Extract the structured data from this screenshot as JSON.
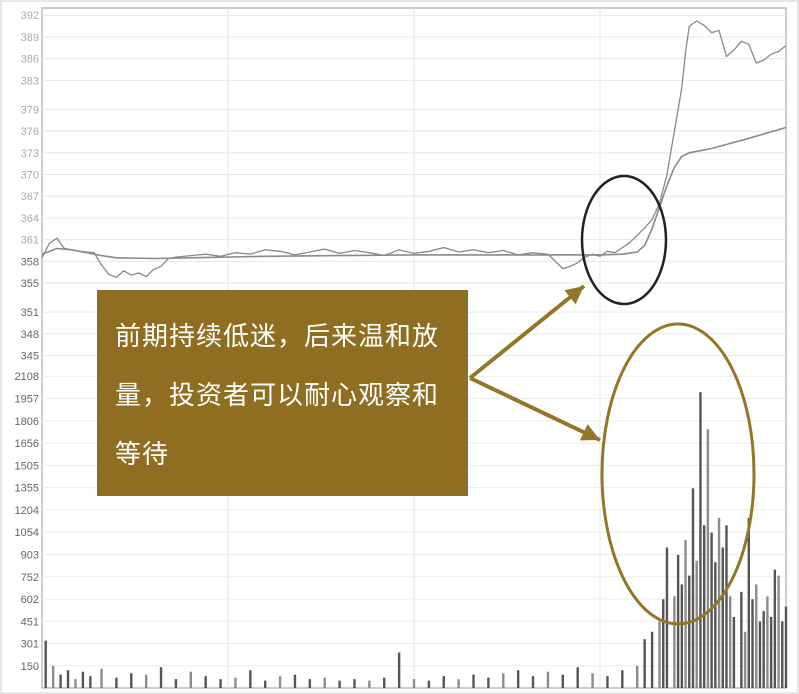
{
  "callout_text": "前期持续低迷，后来温和放量，投资者可以耐心观察和等待",
  "colors": {
    "price": "#8a8a8a",
    "avg": "#8a8a8a",
    "volume": "#555555",
    "annotation": "#947629",
    "circle": "#222222",
    "box": "#8f6e22"
  },
  "chart_data": {
    "type": "line",
    "panels": [
      {
        "name": "price",
        "ylim": [
          343,
          393
        ],
        "y_ticks": [
          {
            "value": 392,
            "label": "392"
          },
          {
            "value": 389,
            "label": "389"
          },
          {
            "value": 386,
            "label": "386"
          },
          {
            "value": 383,
            "label": "383"
          },
          {
            "value": 379,
            "label": "379"
          },
          {
            "value": 376,
            "label": "376"
          },
          {
            "value": 373,
            "label": "373"
          },
          {
            "value": 370,
            "label": "370"
          },
          {
            "value": 367,
            "label": "367"
          },
          {
            "value": 364,
            "label": "364"
          },
          {
            "value": 361,
            "label": "361"
          },
          {
            "value": 358,
            "label": "358"
          },
          {
            "value": 355,
            "label": "355"
          },
          {
            "value": 351,
            "label": "351"
          },
          {
            "value": 348,
            "label": "348"
          },
          {
            "value": 345,
            "label": "345"
          }
        ],
        "price_series": [
          [
            0,
            358.5
          ],
          [
            0.01,
            360.5
          ],
          [
            0.02,
            361.2
          ],
          [
            0.03,
            359.8
          ],
          [
            0.05,
            359.4
          ],
          [
            0.07,
            359.2
          ],
          [
            0.08,
            357.5
          ],
          [
            0.09,
            356.2
          ],
          [
            0.1,
            355.8
          ],
          [
            0.11,
            356.7
          ],
          [
            0.12,
            356.1
          ],
          [
            0.13,
            356.4
          ],
          [
            0.14,
            355.9
          ],
          [
            0.15,
            356.9
          ],
          [
            0.16,
            357.3
          ],
          [
            0.17,
            358.4
          ],
          [
            0.18,
            358.6
          ],
          [
            0.2,
            358.8
          ],
          [
            0.22,
            359.0
          ],
          [
            0.24,
            358.7
          ],
          [
            0.26,
            359.2
          ],
          [
            0.28,
            359.0
          ],
          [
            0.3,
            359.6
          ],
          [
            0.32,
            359.4
          ],
          [
            0.34,
            358.9
          ],
          [
            0.36,
            359.3
          ],
          [
            0.38,
            359.7
          ],
          [
            0.4,
            359.1
          ],
          [
            0.42,
            359.5
          ],
          [
            0.44,
            359.2
          ],
          [
            0.46,
            358.8
          ],
          [
            0.48,
            359.6
          ],
          [
            0.5,
            359.1
          ],
          [
            0.52,
            359.4
          ],
          [
            0.54,
            359.9
          ],
          [
            0.56,
            359.3
          ],
          [
            0.58,
            359.6
          ],
          [
            0.6,
            359.2
          ],
          [
            0.62,
            359.5
          ],
          [
            0.64,
            358.9
          ],
          [
            0.66,
            359.2
          ],
          [
            0.68,
            359.0
          ],
          [
            0.69,
            358.0
          ],
          [
            0.7,
            357.0
          ],
          [
            0.71,
            357.3
          ],
          [
            0.72,
            357.8
          ],
          [
            0.73,
            358.6
          ],
          [
            0.74,
            359.0
          ],
          [
            0.75,
            358.7
          ],
          [
            0.76,
            359.4
          ],
          [
            0.77,
            359.2
          ],
          [
            0.78,
            359.9
          ],
          [
            0.79,
            360.6
          ],
          [
            0.8,
            361.6
          ],
          [
            0.81,
            362.6
          ],
          [
            0.82,
            363.8
          ],
          [
            0.83,
            366.0
          ],
          [
            0.84,
            370.0
          ],
          [
            0.85,
            376.0
          ],
          [
            0.86,
            382.0
          ],
          [
            0.865,
            387.0
          ],
          [
            0.87,
            390.5
          ],
          [
            0.88,
            391.2
          ],
          [
            0.89,
            390.6
          ],
          [
            0.9,
            389.6
          ],
          [
            0.91,
            389.9
          ],
          [
            0.92,
            386.3
          ],
          [
            0.93,
            387.2
          ],
          [
            0.94,
            388.4
          ],
          [
            0.95,
            388.0
          ],
          [
            0.96,
            385.4
          ],
          [
            0.97,
            385.8
          ],
          [
            0.98,
            386.6
          ],
          [
            0.99,
            387.0
          ],
          [
            1.0,
            387.8
          ]
        ],
        "avg_series": [
          [
            0,
            359.0
          ],
          [
            0.02,
            359.8
          ],
          [
            0.04,
            359.6
          ],
          [
            0.06,
            359.2
          ],
          [
            0.08,
            358.8
          ],
          [
            0.1,
            358.5
          ],
          [
            0.15,
            358.4
          ],
          [
            0.2,
            358.5
          ],
          [
            0.3,
            358.7
          ],
          [
            0.4,
            358.8
          ],
          [
            0.5,
            358.9
          ],
          [
            0.6,
            358.9
          ],
          [
            0.7,
            358.9
          ],
          [
            0.75,
            358.9
          ],
          [
            0.78,
            359.0
          ],
          [
            0.8,
            359.3
          ],
          [
            0.81,
            360.2
          ],
          [
            0.82,
            362.5
          ],
          [
            0.83,
            365.5
          ],
          [
            0.84,
            368.5
          ],
          [
            0.85,
            371.0
          ],
          [
            0.86,
            372.5
          ],
          [
            0.87,
            373.0
          ],
          [
            0.9,
            373.6
          ],
          [
            0.95,
            375.0
          ],
          [
            1.0,
            376.5
          ]
        ]
      },
      {
        "name": "volume",
        "ylim": [
          0,
          2150
        ],
        "y_ticks": [
          {
            "value": 2108,
            "label": "2108"
          },
          {
            "value": 1957,
            "label": "1957"
          },
          {
            "value": 1806,
            "label": "1806"
          },
          {
            "value": 1656,
            "label": "1656"
          },
          {
            "value": 1505,
            "label": "1505"
          },
          {
            "value": 1355,
            "label": "1355"
          },
          {
            "value": 1204,
            "label": "1204"
          },
          {
            "value": 1054,
            "label": "1054"
          },
          {
            "value": 903,
            "label": "903"
          },
          {
            "value": 752,
            "label": "752"
          },
          {
            "value": 602,
            "label": "602"
          },
          {
            "value": 451,
            "label": "451"
          },
          {
            "value": 301,
            "label": "301"
          },
          {
            "value": 150,
            "label": "150"
          }
        ],
        "volume_series": [
          [
            0.005,
            320
          ],
          [
            0.015,
            150
          ],
          [
            0.025,
            90
          ],
          [
            0.035,
            120
          ],
          [
            0.045,
            60
          ],
          [
            0.055,
            110
          ],
          [
            0.065,
            80
          ],
          [
            0.08,
            130
          ],
          [
            0.1,
            70
          ],
          [
            0.12,
            100
          ],
          [
            0.14,
            90
          ],
          [
            0.16,
            140
          ],
          [
            0.18,
            60
          ],
          [
            0.2,
            110
          ],
          [
            0.22,
            80
          ],
          [
            0.24,
            60
          ],
          [
            0.26,
            70
          ],
          [
            0.28,
            120
          ],
          [
            0.3,
            50
          ],
          [
            0.32,
            80
          ],
          [
            0.34,
            90
          ],
          [
            0.36,
            60
          ],
          [
            0.38,
            70
          ],
          [
            0.4,
            50
          ],
          [
            0.42,
            60
          ],
          [
            0.44,
            50
          ],
          [
            0.46,
            70
          ],
          [
            0.48,
            240
          ],
          [
            0.5,
            60
          ],
          [
            0.52,
            50
          ],
          [
            0.54,
            80
          ],
          [
            0.56,
            60
          ],
          [
            0.58,
            90
          ],
          [
            0.6,
            70
          ],
          [
            0.62,
            100
          ],
          [
            0.64,
            120
          ],
          [
            0.66,
            80
          ],
          [
            0.68,
            110
          ],
          [
            0.7,
            90
          ],
          [
            0.72,
            140
          ],
          [
            0.74,
            100
          ],
          [
            0.76,
            80
          ],
          [
            0.78,
            120
          ],
          [
            0.8,
            150
          ],
          [
            0.81,
            330
          ],
          [
            0.82,
            380
          ],
          [
            0.83,
            450
          ],
          [
            0.835,
            600
          ],
          [
            0.84,
            950
          ],
          [
            0.85,
            620
          ],
          [
            0.855,
            900
          ],
          [
            0.86,
            700
          ],
          [
            0.865,
            1000
          ],
          [
            0.87,
            760
          ],
          [
            0.875,
            1350
          ],
          [
            0.88,
            860
          ],
          [
            0.885,
            2000
          ],
          [
            0.89,
            1100
          ],
          [
            0.895,
            1750
          ],
          [
            0.9,
            1050
          ],
          [
            0.905,
            850
          ],
          [
            0.91,
            1150
          ],
          [
            0.915,
            950
          ],
          [
            0.92,
            1100
          ],
          [
            0.925,
            620
          ],
          [
            0.93,
            480
          ],
          [
            0.94,
            650
          ],
          [
            0.945,
            380
          ],
          [
            0.95,
            1150
          ],
          [
            0.955,
            600
          ],
          [
            0.96,
            700
          ],
          [
            0.965,
            450
          ],
          [
            0.97,
            520
          ],
          [
            0.975,
            620
          ],
          [
            0.98,
            480
          ],
          [
            0.985,
            800
          ],
          [
            0.99,
            760
          ],
          [
            0.995,
            450
          ],
          [
            1.0,
            550
          ]
        ]
      }
    ]
  }
}
